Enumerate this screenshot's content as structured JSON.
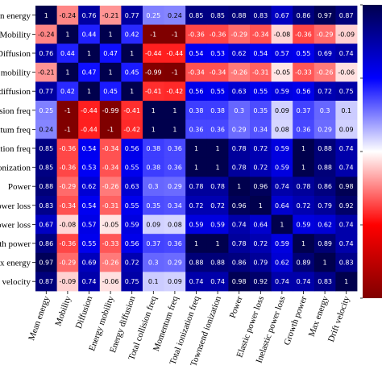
{
  "chart_data": {
    "type": "heatmap",
    "row_labels": [
      "Mean energy",
      "Mobility",
      "Diffusion",
      "Energy mobility",
      "Energy diffusion",
      "Total collision freq",
      "Momentum freq",
      "Total ionization freq",
      "Townsend ionization",
      "Power",
      "Elastic power loss",
      "Inelastic power loss",
      "Growth power",
      "Max energy",
      "Drift velocity"
    ],
    "col_labels": [
      "Mean energy",
      "Mobility",
      "Diffusion",
      "Energy mobility",
      "Energy diffusion",
      "Total collision freq",
      "Momentum freq",
      "Total ionization freq",
      "Townsend ionization",
      "Power",
      "Elastic power loss",
      "Inelastic power loss",
      "Growth power",
      "Max energy",
      "Drift velocity"
    ],
    "values": [
      [
        1,
        -0.24,
        0.76,
        -0.21,
        0.77,
        0.25,
        0.24,
        0.85,
        0.85,
        0.88,
        0.83,
        0.67,
        0.86,
        0.97,
        0.87
      ],
      [
        -0.24,
        1,
        0.44,
        1,
        0.42,
        -1,
        -1,
        -0.36,
        -0.36,
        -0.29,
        -0.34,
        -0.08,
        -0.36,
        -0.29,
        -0.09
      ],
      [
        0.76,
        0.44,
        1,
        0.47,
        1,
        -0.44,
        -0.44,
        0.54,
        0.53,
        0.62,
        0.54,
        0.57,
        0.55,
        0.69,
        0.74
      ],
      [
        -0.21,
        1,
        0.47,
        1,
        0.45,
        -0.99,
        -1,
        -0.34,
        -0.34,
        -0.26,
        -0.31,
        -0.05,
        -0.33,
        -0.26,
        -0.06
      ],
      [
        0.77,
        0.42,
        1,
        0.45,
        1,
        -0.41,
        -0.42,
        0.56,
        0.55,
        0.63,
        0.55,
        0.59,
        0.56,
        0.72,
        0.75
      ],
      [
        0.25,
        -1,
        -0.44,
        -0.99,
        -0.41,
        1,
        1,
        0.38,
        0.38,
        0.3,
        0.35,
        0.09,
        0.37,
        0.3,
        0.1
      ],
      [
        0.24,
        -1,
        -0.44,
        -1,
        -0.42,
        1,
        1,
        0.36,
        0.36,
        0.29,
        0.34,
        0.08,
        0.36,
        0.29,
        0.09
      ],
      [
        0.85,
        -0.36,
        0.54,
        -0.34,
        0.56,
        0.38,
        0.36,
        1,
        1,
        0.78,
        0.72,
        0.59,
        1,
        0.88,
        0.74
      ],
      [
        0.85,
        -0.36,
        0.53,
        -0.34,
        0.55,
        0.38,
        0.36,
        1,
        1,
        0.78,
        0.72,
        0.59,
        1,
        0.88,
        0.74
      ],
      [
        0.88,
        -0.29,
        0.62,
        -0.26,
        0.63,
        0.3,
        0.29,
        0.78,
        0.78,
        1,
        0.96,
        0.74,
        0.78,
        0.86,
        0.98
      ],
      [
        0.83,
        -0.34,
        0.54,
        -0.31,
        0.55,
        0.35,
        0.34,
        0.72,
        0.72,
        0.96,
        1,
        0.64,
        0.72,
        0.79,
        0.92
      ],
      [
        0.67,
        -0.08,
        0.57,
        -0.05,
        0.59,
        0.09,
        0.08,
        0.59,
        0.59,
        0.74,
        0.64,
        1,
        0.59,
        0.62,
        0.74
      ],
      [
        0.86,
        -0.36,
        0.55,
        -0.33,
        0.56,
        0.37,
        0.36,
        1,
        1,
        0.78,
        0.72,
        0.59,
        1,
        0.89,
        0.74
      ],
      [
        0.97,
        -0.29,
        0.69,
        -0.26,
        0.72,
        0.3,
        0.29,
        0.88,
        0.88,
        0.86,
        0.79,
        0.62,
        0.89,
        1,
        0.83
      ],
      [
        0.87,
        -0.09,
        0.74,
        -0.06,
        0.75,
        0.1,
        0.09,
        0.74,
        0.74,
        0.98,
        0.92,
        0.74,
        0.74,
        0.83,
        1
      ]
    ],
    "vmin": -1,
    "vmax": 1,
    "colormap": "seismic_r",
    "colors": {
      "negative": "#800000",
      "mid_negative": "#ff0000",
      "zero": "#ffffff",
      "mid_positive": "#0000ff",
      "positive": "#00004d"
    },
    "colorbar": true
  }
}
